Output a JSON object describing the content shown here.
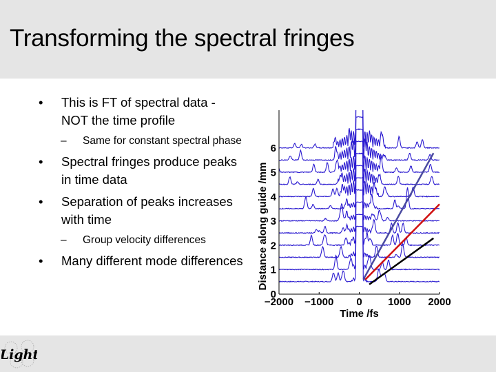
{
  "slide": {
    "title": "Transforming the spectral fringes",
    "bullets": [
      {
        "mark": "•",
        "text": "This is FT of spectral data - NOT the time profile"
      },
      {
        "mark": "–",
        "text": "Same for constant spectral phase",
        "level": 2
      },
      {
        "mark": "•",
        "text": "Spectral fringes produce peaks in time data"
      },
      {
        "mark": "•",
        "text": "Separation of peaks increases with time"
      },
      {
        "mark": "–",
        "text": "Group velocity differences",
        "level": 2
      },
      {
        "mark": "•",
        "text": "Many different mode differences"
      }
    ],
    "footer": {
      "logo_text": "Light",
      "logo_icon": "script-light-logo-icon"
    }
  },
  "colors": {
    "header_bg": "#e5e5e5",
    "trace_color": "#2a1ad0",
    "line_blue": "#4a4aa0",
    "line_red": "#d01010",
    "line_black": "#000000"
  },
  "chart_data": {
    "type": "line",
    "title": "",
    "xlabel": "Time /fs",
    "ylabel": "Distance along guide /mm",
    "xlim": [
      -2000,
      2000
    ],
    "ylim": [
      0,
      6.8
    ],
    "xticks": [
      "-2000",
      "-1000",
      "0",
      "1000",
      "2000"
    ],
    "yticks": [
      "0",
      "1",
      "2",
      "3",
      "4",
      "5",
      "6"
    ],
    "grid": false,
    "description": "Waterfall of FT traces at distances 0.5 to 6 mm in 0.5 mm steps; strong central peak at t=0 with side peaks moving outward with distance",
    "trace_offsets_mm": [
      0.5,
      1.0,
      1.5,
      2.0,
      2.5,
      3.0,
      3.5,
      4.0,
      4.5,
      5.0,
      5.5,
      6.0
    ],
    "series": [
      {
        "name": "blue guide line",
        "x": [
          100,
          1850
        ],
        "y": [
          0.6,
          5.8
        ]
      },
      {
        "name": "red guide line",
        "x": [
          150,
          2000
        ],
        "y": [
          0.6,
          3.7
        ]
      },
      {
        "name": "black guide line",
        "x": [
          250,
          1850
        ],
        "y": [
          0.4,
          2.3
        ]
      }
    ]
  }
}
